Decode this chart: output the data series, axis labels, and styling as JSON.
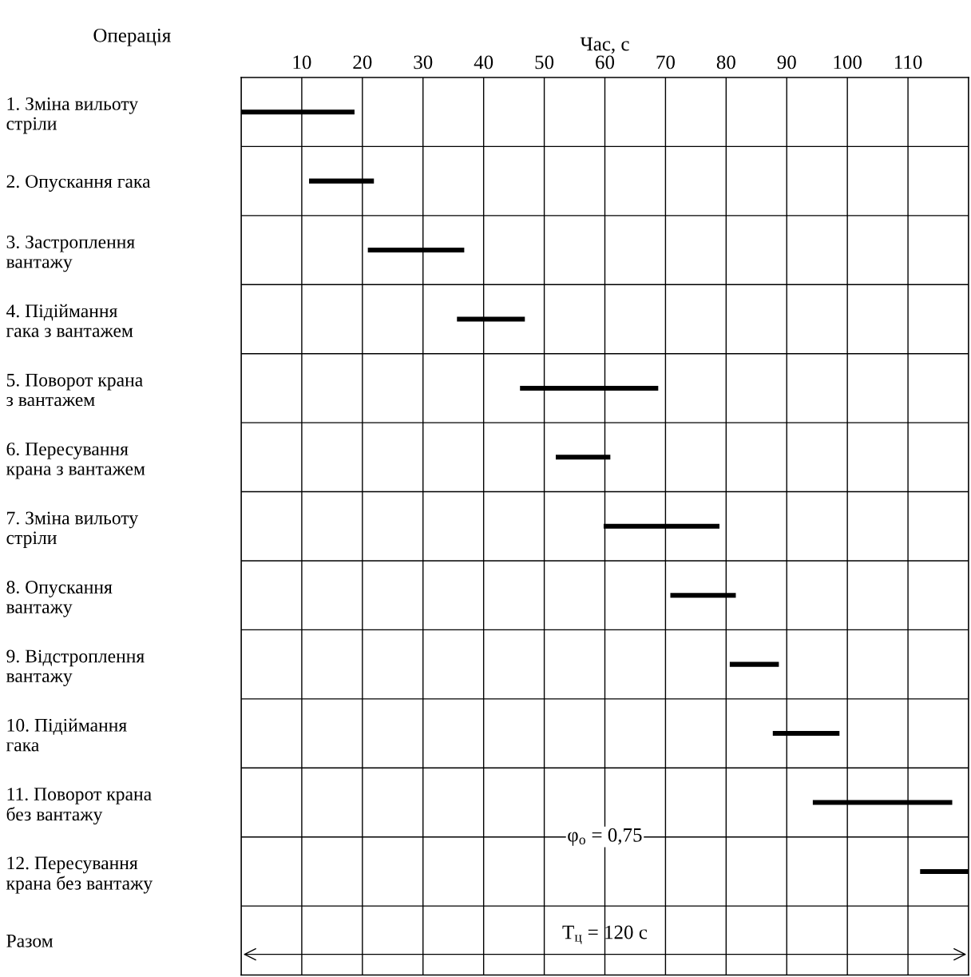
{
  "chart_data": {
    "type": "bar",
    "orientation": "horizontal",
    "xlabel": "Час, с",
    "ylabel": "Операція",
    "categories": [
      "1. Зміна вильоту\nстріли",
      "2. Опускання гака",
      "3. Застроплення\nвантажу",
      "4. Підіймання\nгака з вантажем",
      "5. Поворот крана\nз вантажем",
      "6. Пересування\nкрана з вантажем",
      "7. Зміна вильоту\nстріли",
      "8. Опускання\nвантажу",
      "9. Відстроплення\nвантажу",
      "10. Підіймання\nгака",
      "11. Поворот крана\nбез вантажу",
      "12. Пересування\nкрана без вантажу",
      "Разом"
    ],
    "base": [
      0,
      11.2,
      20.9,
      35.6,
      46,
      51.9,
      59.8,
      70.8,
      80.6,
      87.7,
      94.3,
      112,
      null
    ],
    "values": [
      18.7,
      10.7,
      15.9,
      11.2,
      22.8,
      9,
      19.1,
      10.8,
      8.1,
      11,
      23,
      8,
      null
    ],
    "color": "#000000",
    "xlim": [
      0,
      120
    ],
    "xticks": [
      {
        "value": 0,
        "label": null
      },
      10,
      20,
      30,
      40,
      50,
      60,
      70,
      80,
      90,
      100,
      110,
      {
        "value": 120,
        "label": null
      }
    ],
    "grid": true,
    "annotations": [
      "φ$_{о}$ = 0,75",
      "T$_{ц}$ = 120 с"
    ]
  }
}
